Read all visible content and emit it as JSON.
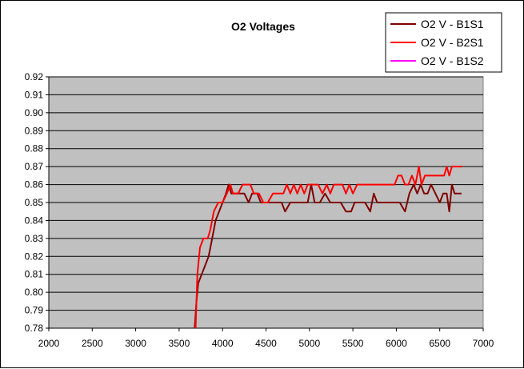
{
  "chart_data": {
    "type": "line",
    "title": "O2 Voltages",
    "xlabel": "",
    "ylabel": "",
    "xlim": [
      2000,
      7000
    ],
    "ylim": [
      0.78,
      0.92
    ],
    "x_ticks": [
      2000,
      2500,
      3000,
      3500,
      4000,
      4500,
      5000,
      5500,
      6000,
      6500,
      7000
    ],
    "y_ticks": [
      "0.78",
      "0.79",
      "0.80",
      "0.81",
      "0.82",
      "0.83",
      "0.84",
      "0.85",
      "0.86",
      "0.87",
      "0.88",
      "0.89",
      "0.90",
      "0.91",
      "0.92"
    ],
    "grid": "horizontal major",
    "plot_background": "#c0c0c0",
    "legend_position": "top-right",
    "series": [
      {
        "name": "O2 V - B1S1",
        "color": "#800000",
        "points": [
          [
            3680,
            0.78
          ],
          [
            3700,
            0.795
          ],
          [
            3720,
            0.805
          ],
          [
            3760,
            0.81
          ],
          [
            3800,
            0.815
          ],
          [
            3840,
            0.82
          ],
          [
            3880,
            0.83
          ],
          [
            3920,
            0.84
          ],
          [
            3960,
            0.845
          ],
          [
            4000,
            0.85
          ],
          [
            4040,
            0.855
          ],
          [
            4070,
            0.86
          ],
          [
            4100,
            0.855
          ],
          [
            4150,
            0.855
          ],
          [
            4200,
            0.855
          ],
          [
            4250,
            0.855
          ],
          [
            4300,
            0.85
          ],
          [
            4340,
            0.855
          ],
          [
            4400,
            0.855
          ],
          [
            4440,
            0.85
          ],
          [
            4500,
            0.85
          ],
          [
            4560,
            0.85
          ],
          [
            4620,
            0.85
          ],
          [
            4680,
            0.85
          ],
          [
            4720,
            0.845
          ],
          [
            4780,
            0.85
          ],
          [
            4830,
            0.85
          ],
          [
            4880,
            0.85
          ],
          [
            4940,
            0.85
          ],
          [
            4980,
            0.85
          ],
          [
            5020,
            0.86
          ],
          [
            5060,
            0.85
          ],
          [
            5120,
            0.85
          ],
          [
            5180,
            0.855
          ],
          [
            5240,
            0.85
          ],
          [
            5300,
            0.85
          ],
          [
            5360,
            0.85
          ],
          [
            5420,
            0.845
          ],
          [
            5480,
            0.845
          ],
          [
            5520,
            0.85
          ],
          [
            5580,
            0.85
          ],
          [
            5640,
            0.85
          ],
          [
            5700,
            0.845
          ],
          [
            5740,
            0.855
          ],
          [
            5780,
            0.85
          ],
          [
            5840,
            0.85
          ],
          [
            5900,
            0.85
          ],
          [
            5960,
            0.85
          ],
          [
            6040,
            0.85
          ],
          [
            6100,
            0.845
          ],
          [
            6150,
            0.855
          ],
          [
            6200,
            0.86
          ],
          [
            6240,
            0.855
          ],
          [
            6280,
            0.86
          ],
          [
            6320,
            0.855
          ],
          [
            6360,
            0.855
          ],
          [
            6400,
            0.86
          ],
          [
            6450,
            0.855
          ],
          [
            6500,
            0.85
          ],
          [
            6540,
            0.855
          ],
          [
            6580,
            0.855
          ],
          [
            6610,
            0.845
          ],
          [
            6640,
            0.86
          ],
          [
            6670,
            0.855
          ],
          [
            6700,
            0.855
          ],
          [
            6750,
            0.855
          ]
        ]
      },
      {
        "name": "O2 V - B2S1",
        "color": "#ff0000",
        "points": [
          [
            3690,
            0.78
          ],
          [
            3710,
            0.81
          ],
          [
            3740,
            0.825
          ],
          [
            3780,
            0.83
          ],
          [
            3830,
            0.83
          ],
          [
            3860,
            0.835
          ],
          [
            3900,
            0.845
          ],
          [
            3950,
            0.85
          ],
          [
            4000,
            0.85
          ],
          [
            4050,
            0.855
          ],
          [
            4090,
            0.86
          ],
          [
            4120,
            0.855
          ],
          [
            4180,
            0.855
          ],
          [
            4230,
            0.86
          ],
          [
            4280,
            0.86
          ],
          [
            4320,
            0.86
          ],
          [
            4360,
            0.855
          ],
          [
            4420,
            0.855
          ],
          [
            4470,
            0.85
          ],
          [
            4520,
            0.85
          ],
          [
            4580,
            0.855
          ],
          [
            4640,
            0.855
          ],
          [
            4700,
            0.855
          ],
          [
            4740,
            0.86
          ],
          [
            4780,
            0.855
          ],
          [
            4820,
            0.86
          ],
          [
            4860,
            0.855
          ],
          [
            4900,
            0.86
          ],
          [
            4940,
            0.855
          ],
          [
            4980,
            0.86
          ],
          [
            5040,
            0.86
          ],
          [
            5100,
            0.86
          ],
          [
            5150,
            0.855
          ],
          [
            5200,
            0.86
          ],
          [
            5240,
            0.855
          ],
          [
            5280,
            0.86
          ],
          [
            5320,
            0.86
          ],
          [
            5380,
            0.86
          ],
          [
            5420,
            0.855
          ],
          [
            5460,
            0.86
          ],
          [
            5500,
            0.855
          ],
          [
            5550,
            0.86
          ],
          [
            5620,
            0.86
          ],
          [
            5700,
            0.86
          ],
          [
            5800,
            0.86
          ],
          [
            5900,
            0.86
          ],
          [
            5980,
            0.86
          ],
          [
            6020,
            0.865
          ],
          [
            6060,
            0.865
          ],
          [
            6100,
            0.86
          ],
          [
            6140,
            0.86
          ],
          [
            6180,
            0.865
          ],
          [
            6220,
            0.86
          ],
          [
            6260,
            0.87
          ],
          [
            6290,
            0.86
          ],
          [
            6330,
            0.865
          ],
          [
            6380,
            0.865
          ],
          [
            6440,
            0.865
          ],
          [
            6500,
            0.865
          ],
          [
            6550,
            0.865
          ],
          [
            6580,
            0.87
          ],
          [
            6610,
            0.865
          ],
          [
            6640,
            0.87
          ],
          [
            6700,
            0.87
          ],
          [
            6760,
            0.87
          ]
        ]
      },
      {
        "name": "O2 V - B1S2",
        "color": "#ff00ff",
        "points": []
      }
    ]
  }
}
